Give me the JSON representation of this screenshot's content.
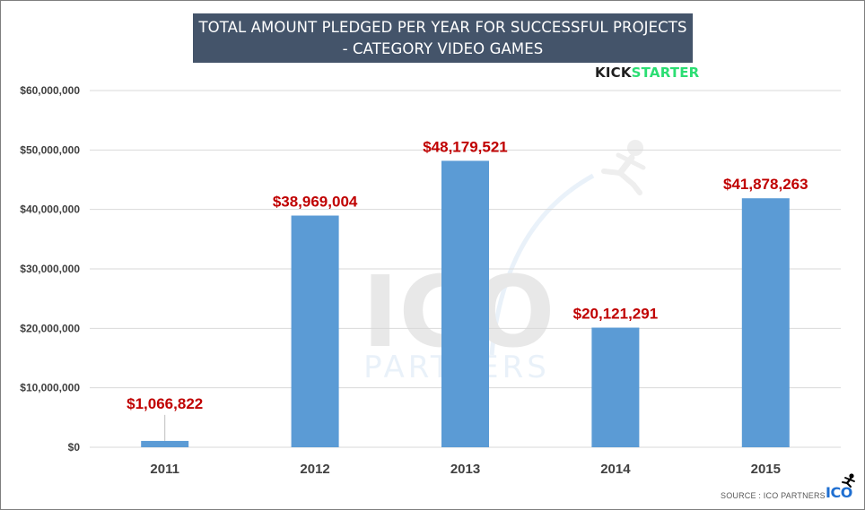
{
  "title_line1": "TOTAL AMOUNT PLEDGED PER YEAR FOR SUCCESSFUL PROJECTS",
  "title_line2": "- CATEGORY VIDEO GAMES",
  "kickstarter_logo": {
    "kick": "KICK",
    "starter": "STARTER"
  },
  "source": "SOURCE : ICO PARTNERS",
  "watermark": {
    "logo": "ICO",
    "subtitle": "PARTNERS"
  },
  "brand_logo": "ICO",
  "colors": {
    "bar": "#5b9bd5",
    "data_label": "#c00000",
    "title_bg": "#44546a",
    "grid": "#d9d9d9",
    "kickstarter_green": "#2bde73"
  },
  "chart_data": {
    "type": "bar",
    "title": "TOTAL AMOUNT PLEDGED PER YEAR FOR SUCCESSFUL PROJECTS - CATEGORY VIDEO GAMES",
    "categories": [
      "2011",
      "2012",
      "2013",
      "2014",
      "2015"
    ],
    "values": [
      1066822,
      38969004,
      48179521,
      20121291,
      41878263
    ],
    "data_labels": [
      "$1,066,822",
      "$38,969,004",
      "$48,179,521",
      "$20,121,291",
      "$41,878,263"
    ],
    "y_ticks": [
      0,
      10000000,
      20000000,
      30000000,
      40000000,
      50000000,
      60000000
    ],
    "y_tick_labels": [
      "$0",
      "$10,000,000",
      "$20,000,000",
      "$30,000,000",
      "$40,000,000",
      "$50,000,000",
      "$60,000,000"
    ],
    "ylim": [
      0,
      60000000
    ],
    "xlabel": "",
    "ylabel": "",
    "grid": true,
    "legend": "none"
  }
}
